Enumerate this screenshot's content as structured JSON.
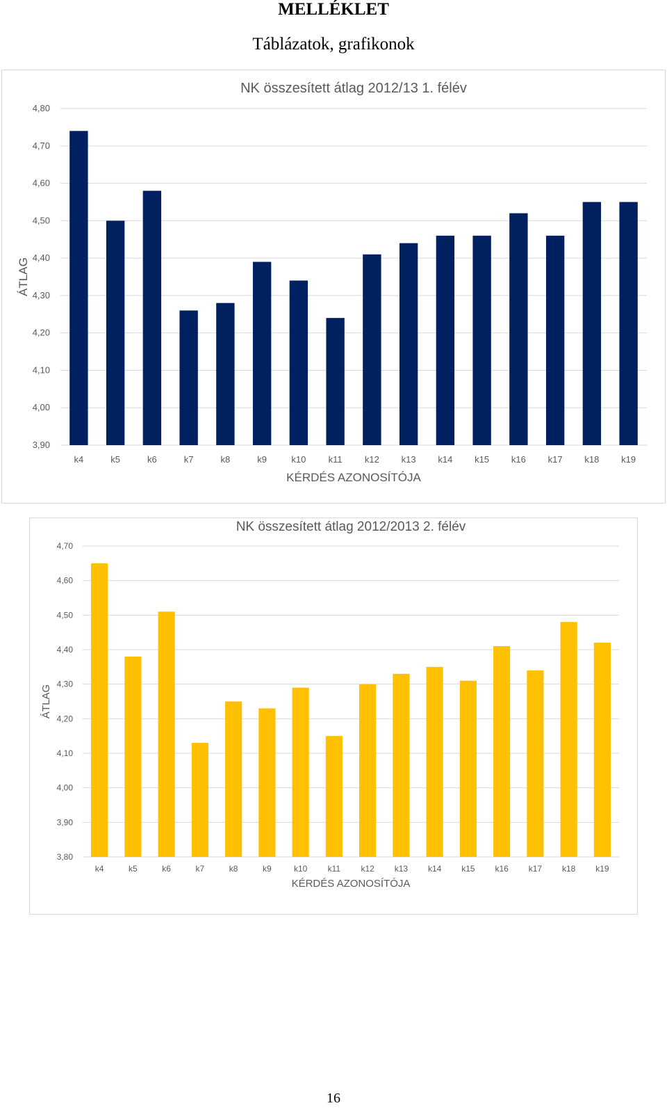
{
  "document": {
    "heading": "MELLÉKLET",
    "subheading": "Táblázatok, grafikonok",
    "page_number": "16"
  },
  "chart_data": [
    {
      "type": "bar",
      "title": "NK összesített átlag 2012/13 1. félév",
      "xlabel": "KÉRDÉS AZONOSÍTÓJA",
      "ylabel": "ÁTLAG",
      "categories": [
        "k4",
        "k5",
        "k6",
        "k7",
        "k8",
        "k9",
        "k10",
        "k11",
        "k12",
        "k13",
        "k14",
        "k15",
        "k16",
        "k17",
        "k18",
        "k19"
      ],
      "values": [
        4.74,
        4.5,
        4.58,
        4.26,
        4.28,
        4.39,
        4.34,
        4.24,
        4.41,
        4.44,
        4.46,
        4.46,
        4.52,
        4.46,
        4.55,
        4.55
      ],
      "ylim": [
        3.9,
        4.8
      ],
      "yticks": [
        "3,90",
        "4,00",
        "4,10",
        "4,20",
        "4,30",
        "4,40",
        "4,50",
        "4,60",
        "4,70",
        "4,80"
      ],
      "grid": true,
      "bar_color": "#002060"
    },
    {
      "type": "bar",
      "title": "NK összesített átlag 2012/2013 2. félév",
      "xlabel": "KÉRDÉS AZONOSÍTÓJA",
      "ylabel": "ÁTLAG",
      "categories": [
        "k4",
        "k5",
        "k6",
        "k7",
        "k8",
        "k9",
        "k10",
        "k11",
        "k12",
        "k13",
        "k14",
        "k15",
        "k16",
        "k17",
        "k18",
        "k19"
      ],
      "values": [
        4.65,
        4.38,
        4.51,
        4.13,
        4.25,
        4.23,
        4.29,
        4.15,
        4.3,
        4.33,
        4.35,
        4.31,
        4.41,
        4.34,
        4.48,
        4.42
      ],
      "ylim": [
        3.8,
        4.7
      ],
      "yticks": [
        "3,80",
        "3,90",
        "4,00",
        "4,10",
        "4,20",
        "4,30",
        "4,40",
        "4,50",
        "4,60",
        "4,70"
      ],
      "grid": true,
      "bar_color": "#FFC000"
    }
  ]
}
